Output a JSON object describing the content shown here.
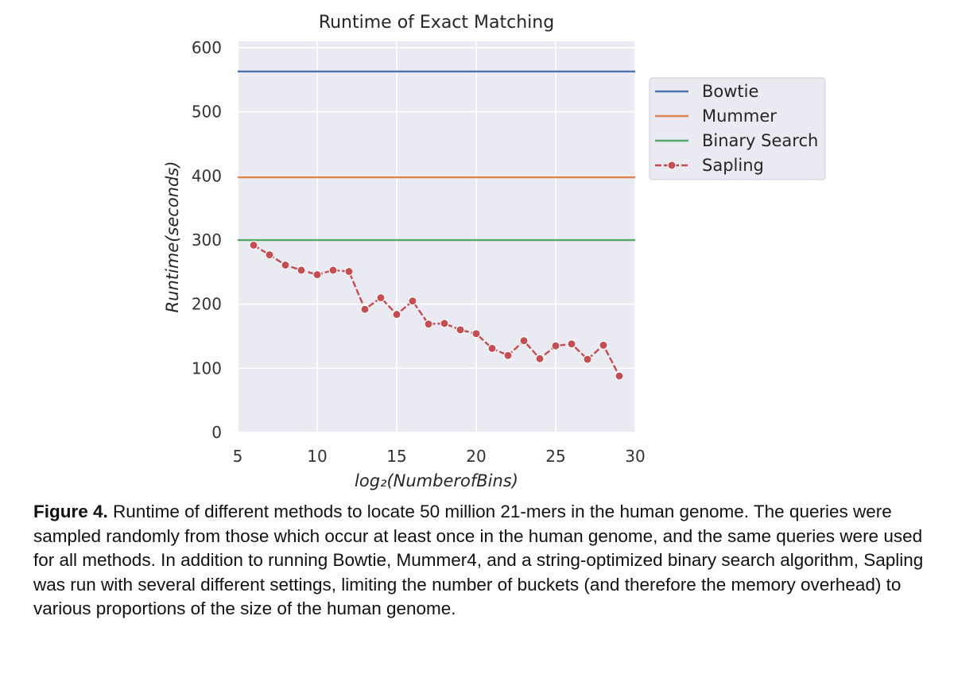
{
  "chart_data": {
    "type": "line",
    "title": "Runtime of Exact Matching",
    "xlabel": "log₂(NumberofBins)",
    "ylabel": "Runtime(seconds)",
    "xlim": [
      5,
      30
    ],
    "ylim": [
      0,
      610
    ],
    "xticks": [
      5,
      10,
      15,
      20,
      25,
      30
    ],
    "yticks": [
      0,
      100,
      200,
      300,
      400,
      500,
      600
    ],
    "grid": true,
    "legend_position": "outside-right",
    "series": [
      {
        "name": "Bowtie",
        "style": "hline",
        "color": "#4c72b0",
        "y": 563
      },
      {
        "name": "Mummer",
        "style": "hline",
        "color": "#dd8452",
        "y": 398
      },
      {
        "name": "Binary Search",
        "style": "hline",
        "color": "#55a868",
        "y": 300
      },
      {
        "name": "Sapling",
        "style": "dashed-markers",
        "color": "#c44e52",
        "x": [
          6,
          7,
          8,
          9,
          10,
          11,
          12,
          13,
          14,
          15,
          16,
          17,
          18,
          19,
          20,
          21,
          22,
          23,
          24,
          25,
          26,
          27,
          28,
          29
        ],
        "y": [
          292,
          277,
          261,
          253,
          246,
          253,
          251,
          192,
          210,
          184,
          205,
          169,
          170,
          160,
          154,
          131,
          120,
          143,
          115,
          135,
          138,
          114,
          136,
          88
        ]
      }
    ]
  },
  "caption": {
    "label": "Figure 4.",
    "text": "Runtime of different methods to locate 50 million 21-mers in the human genome.  The queries were sampled randomly from those which occur at least once in the human genome, and the same queries were used for all methods.  In addition to running Bowtie, Mummer4, and a string-optimized binary search algorithm, Sapling was run with several different settings, limiting the number of buckets (and therefore the memory overhead) to various proportions of the size of the human genome."
  }
}
